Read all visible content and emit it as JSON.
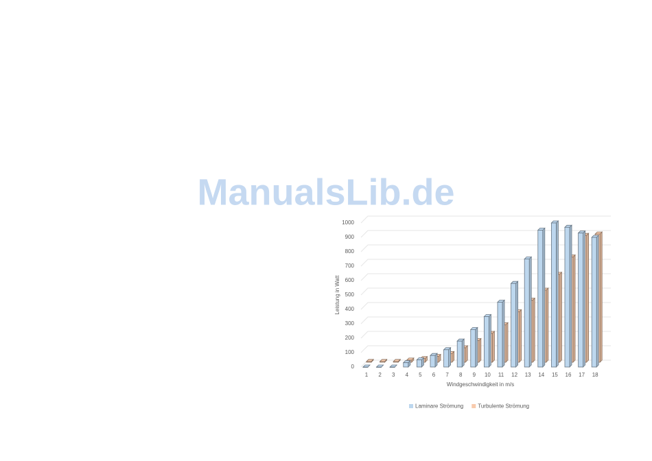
{
  "watermark": "ManualsLib.de",
  "chart_data": {
    "type": "bar3d",
    "y_label": "Leistung in Watt",
    "x_label": "Windgeschwindigkeit in m/s",
    "categories": [
      "1",
      "2",
      "3",
      "4",
      "5",
      "6",
      "7",
      "8",
      "9",
      "10",
      "11",
      "12",
      "13",
      "14",
      "15",
      "16",
      "17",
      "18"
    ],
    "series": [
      {
        "name": "Laminare Strömung",
        "color": "#bdd7ee",
        "values": [
          0,
          0,
          0,
          30,
          50,
          80,
          120,
          180,
          260,
          350,
          450,
          580,
          750,
          950,
          1000,
          970,
          930,
          900
        ]
      },
      {
        "name": "Turbulente Strömung",
        "color": "#f8cbad",
        "values": [
          5,
          5,
          5,
          15,
          25,
          40,
          60,
          100,
          150,
          200,
          260,
          350,
          430,
          500,
          610,
          730,
          880,
          890
        ]
      }
    ],
    "ylim": [
      0,
      1000
    ],
    "yticks": [
      0,
      100,
      200,
      300,
      400,
      500,
      600,
      700,
      800,
      900,
      1000
    ],
    "grid": true,
    "legend": "bottom"
  }
}
